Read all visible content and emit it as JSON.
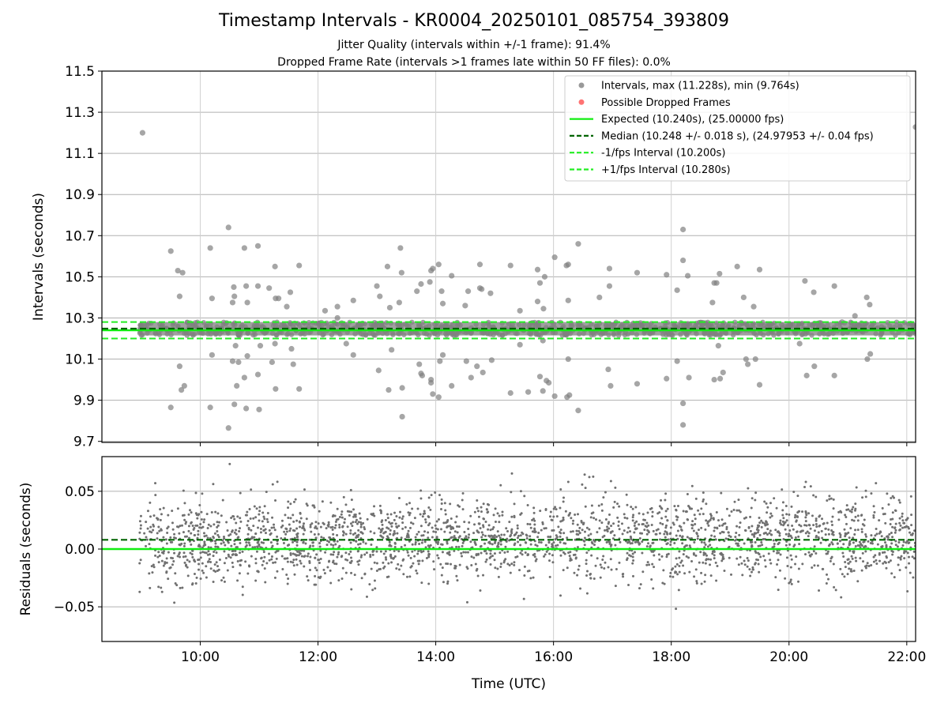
{
  "title": "Timestamp Intervals - KR0004_20250101_085754_393809",
  "subtitle_1": "Jitter Quality (intervals within +/-1 frame): 91.4%",
  "subtitle_2": "Dropped Frame Rate (intervals >1 frames late within 50 FF files): 0.0%",
  "colors": {
    "points": "#808080",
    "dropped": "#ff5050",
    "expected": "#11ee11",
    "median": "#006400",
    "interval": "#22ee22",
    "grid": "#b0b0b0"
  },
  "chart_data": [
    {
      "type": "scatter",
      "panel": "top",
      "xlabel": "",
      "ylabel": "Intervals (seconds)",
      "ylim": [
        9.695,
        11.5
      ],
      "yticks": [
        "9.7",
        "9.9",
        "10.1",
        "10.3",
        "10.5",
        "10.7",
        "10.9",
        "11.1",
        "11.3",
        "11.5"
      ],
      "xlim_hours": [
        8.33,
        22.15
      ],
      "grid": true,
      "legend": "top-right",
      "legend_entries": [
        {
          "label": "Intervals, max (11.228s), min (9.764s)",
          "kind": "point",
          "color": "#808080"
        },
        {
          "label": "Possible Dropped Frames",
          "kind": "point",
          "color": "#ff5050"
        },
        {
          "label": "Expected (10.240s), (25.00000 fps)",
          "kind": "solid",
          "color": "#11ee11"
        },
        {
          "label": "Median (10.248 +/- 0.018 s), (24.97953 +/- 0.04 fps)",
          "kind": "dashed",
          "color": "#006400"
        },
        {
          "label": "-1/fps Interval (10.200s)",
          "kind": "dashed",
          "color": "#22ee22"
        },
        {
          "label": "+1/fps Interval (10.280s)",
          "kind": "dashed",
          "color": "#22ee22"
        }
      ],
      "reference_lines": {
        "expected": 10.24,
        "median": 10.248,
        "minus_interval": 10.2,
        "plus_interval": 10.28
      },
      "band": {
        "x_start_hours": 8.97,
        "x_end_hours": 22.15,
        "y_low": 10.215,
        "y_high": 10.28
      },
      "outliers": [
        [
          9.02,
          11.2
        ],
        [
          9.5,
          10.625
        ],
        [
          9.5,
          9.865
        ],
        [
          9.62,
          10.53
        ],
        [
          9.65,
          10.405
        ],
        [
          9.7,
          10.52
        ],
        [
          9.68,
          9.95
        ],
        [
          9.73,
          9.97
        ],
        [
          9.65,
          10.065
        ],
        [
          10.17,
          10.64
        ],
        [
          10.2,
          10.395
        ],
        [
          10.2,
          10.12
        ],
        [
          10.17,
          9.865
        ],
        [
          10.48,
          10.74
        ],
        [
          10.57,
          10.45
        ],
        [
          10.58,
          10.405
        ],
        [
          10.55,
          10.375
        ],
        [
          10.6,
          10.165
        ],
        [
          10.55,
          10.09
        ],
        [
          10.62,
          9.97
        ],
        [
          10.58,
          9.88
        ],
        [
          10.48,
          9.765
        ],
        [
          10.65,
          10.085
        ],
        [
          10.75,
          10.64
        ],
        [
          10.78,
          10.455
        ],
        [
          10.8,
          10.375
        ],
        [
          10.75,
          10.01
        ],
        [
          10.78,
          9.86
        ],
        [
          10.8,
          10.115
        ],
        [
          10.98,
          10.65
        ],
        [
          10.98,
          10.455
        ],
        [
          11.02,
          10.165
        ],
        [
          10.98,
          10.025
        ],
        [
          11.0,
          9.855
        ],
        [
          11.17,
          10.445
        ],
        [
          11.27,
          10.55
        ],
        [
          11.28,
          10.395
        ],
        [
          11.33,
          10.395
        ],
        [
          11.27,
          10.175
        ],
        [
          11.22,
          10.085
        ],
        [
          11.28,
          9.955
        ],
        [
          11.47,
          10.355
        ],
        [
          11.53,
          10.425
        ],
        [
          11.58,
          10.075
        ],
        [
          11.55,
          10.15
        ],
        [
          11.68,
          10.555
        ],
        [
          11.68,
          9.955
        ],
        [
          12.12,
          10.335
        ],
        [
          12.33,
          10.3
        ],
        [
          12.33,
          10.355
        ],
        [
          12.48,
          10.175
        ],
        [
          12.6,
          10.385
        ],
        [
          12.6,
          10.12
        ],
        [
          13.0,
          10.455
        ],
        [
          13.05,
          10.405
        ],
        [
          13.03,
          10.045
        ],
        [
          13.18,
          10.55
        ],
        [
          13.22,
          10.35
        ],
        [
          13.25,
          10.145
        ],
        [
          13.2,
          9.95
        ],
        [
          13.4,
          10.64
        ],
        [
          13.42,
          10.52
        ],
        [
          13.38,
          10.375
        ],
        [
          13.43,
          9.96
        ],
        [
          13.43,
          9.82
        ],
        [
          13.68,
          10.43
        ],
        [
          13.72,
          10.075
        ],
        [
          13.75,
          10.465
        ],
        [
          13.75,
          10.03
        ],
        [
          13.77,
          10.02
        ],
        [
          13.9,
          10.475
        ],
        [
          13.92,
          10.53
        ],
        [
          13.95,
          10.54
        ],
        [
          13.92,
          10.0
        ],
        [
          13.92,
          9.985
        ],
        [
          13.95,
          9.93
        ],
        [
          14.05,
          10.56
        ],
        [
          14.05,
          9.915
        ],
        [
          14.1,
          10.43
        ],
        [
          14.12,
          10.37
        ],
        [
          14.12,
          10.12
        ],
        [
          14.07,
          10.09
        ],
        [
          14.27,
          10.505
        ],
        [
          14.27,
          9.97
        ],
        [
          14.5,
          10.36
        ],
        [
          14.52,
          10.09
        ],
        [
          14.55,
          10.43
        ],
        [
          14.6,
          10.01
        ],
        [
          14.7,
          10.065
        ],
        [
          14.75,
          10.445
        ],
        [
          14.75,
          10.56
        ],
        [
          14.78,
          10.44
        ],
        [
          14.8,
          10.035
        ],
        [
          14.93,
          10.42
        ],
        [
          14.95,
          10.095
        ],
        [
          15.27,
          10.555
        ],
        [
          15.27,
          9.935
        ],
        [
          15.43,
          10.335
        ],
        [
          15.43,
          10.17
        ],
        [
          15.57,
          9.94
        ],
        [
          15.73,
          10.535
        ],
        [
          15.77,
          10.47
        ],
        [
          15.73,
          10.38
        ],
        [
          15.77,
          10.015
        ],
        [
          15.83,
          10.345
        ],
        [
          15.85,
          10.5
        ],
        [
          15.82,
          10.19
        ],
        [
          15.82,
          9.945
        ],
        [
          15.88,
          9.995
        ],
        [
          15.92,
          9.985
        ],
        [
          16.02,
          10.595
        ],
        [
          16.02,
          9.92
        ],
        [
          16.22,
          10.555
        ],
        [
          16.25,
          10.56
        ],
        [
          16.25,
          10.385
        ],
        [
          16.25,
          10.1
        ],
        [
          16.23,
          9.915
        ],
        [
          16.27,
          9.925
        ],
        [
          16.42,
          10.66
        ],
        [
          16.42,
          9.85
        ],
        [
          16.78,
          10.4
        ],
        [
          16.95,
          10.54
        ],
        [
          16.95,
          10.455
        ],
        [
          16.93,
          10.05
        ],
        [
          16.97,
          9.97
        ],
        [
          17.42,
          10.52
        ],
        [
          17.42,
          9.98
        ],
        [
          17.92,
          10.51
        ],
        [
          17.92,
          10.005
        ],
        [
          18.1,
          10.435
        ],
        [
          18.1,
          10.09
        ],
        [
          18.2,
          10.73
        ],
        [
          18.2,
          10.58
        ],
        [
          18.2,
          9.885
        ],
        [
          18.2,
          9.78
        ],
        [
          18.28,
          10.505
        ],
        [
          18.3,
          10.01
        ],
        [
          18.7,
          10.375
        ],
        [
          18.73,
          10.47
        ],
        [
          18.77,
          10.47
        ],
        [
          18.82,
          10.515
        ],
        [
          18.73,
          10.0
        ],
        [
          18.8,
          10.165
        ],
        [
          18.83,
          10.005
        ],
        [
          18.88,
          10.035
        ],
        [
          19.12,
          10.55
        ],
        [
          19.23,
          10.4
        ],
        [
          19.27,
          10.1
        ],
        [
          19.3,
          10.075
        ],
        [
          19.4,
          10.355
        ],
        [
          19.5,
          10.535
        ],
        [
          19.5,
          9.975
        ],
        [
          19.43,
          10.1
        ],
        [
          20.18,
          10.175
        ],
        [
          20.27,
          10.48
        ],
        [
          20.3,
          10.02
        ],
        [
          20.42,
          10.425
        ],
        [
          20.43,
          10.065
        ],
        [
          20.77,
          10.455
        ],
        [
          20.77,
          10.02
        ],
        [
          20.9,
          10.28
        ],
        [
          21.12,
          10.31
        ],
        [
          21.32,
          10.4
        ],
        [
          21.37,
          10.365
        ],
        [
          21.33,
          10.1
        ],
        [
          21.38,
          10.125
        ],
        [
          22.15,
          11.228
        ]
      ]
    },
    {
      "type": "scatter",
      "panel": "bottom",
      "xlabel": "Time (UTC)",
      "ylabel": "Residuals (seconds)",
      "ylim": [
        -0.08,
        0.08
      ],
      "yticks": [
        "−0.05",
        "0.00",
        "0.05"
      ],
      "xlim_hours": [
        8.33,
        22.15
      ],
      "xticks": [
        "10:00",
        "12:00",
        "14:00",
        "16:00",
        "18:00",
        "20:00",
        "22:00"
      ],
      "grid": true,
      "reference_lines": {
        "expected": 0.0,
        "median": 0.008
      },
      "residual_points": 2600,
      "residual_mean": 0.008,
      "residual_std": 0.018,
      "seed": 7
    }
  ]
}
